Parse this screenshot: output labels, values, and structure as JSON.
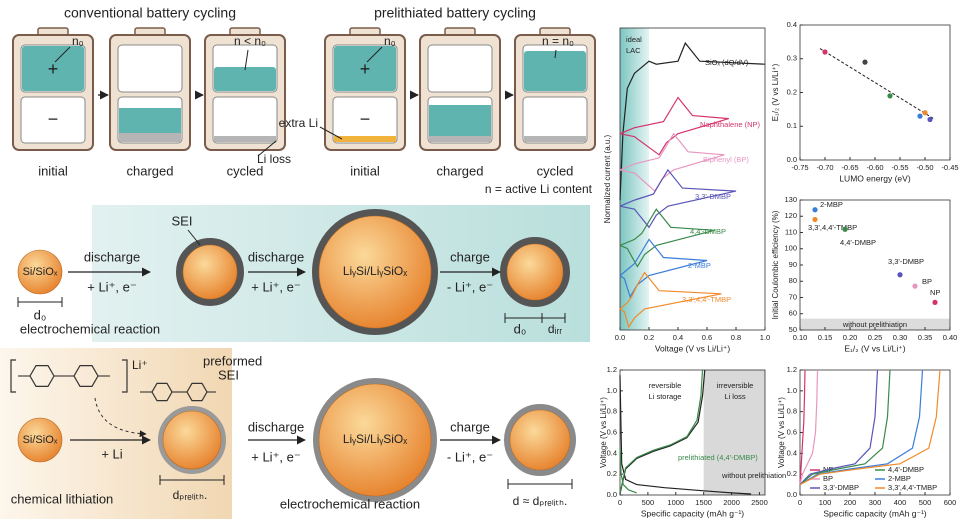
{
  "schematic": {
    "conventional_title": "conventional battery cycling",
    "prelithiated_title": "prelithiated battery cycling",
    "stage_labels": [
      "initial",
      "charged",
      "cycled",
      "initial",
      "charged",
      "cycled"
    ],
    "callouts": [
      "n₀",
      "n < n₀",
      "Li loss",
      "n₀",
      "n = n₀",
      "extra Li"
    ],
    "electrodes": [
      "+",
      "−",
      "+",
      "−"
    ],
    "legend_note": "n = active Li content"
  },
  "electrochemical_row": {
    "particle": "Si/SiOₓ",
    "sei": "SEI",
    "steps": [
      "discharge",
      "+ Li⁺, e⁻",
      "discharge",
      "+ Li⁺, e⁻",
      "charge",
      "- Li⁺, e⁻"
    ],
    "lithiated": "LiᵧSi/LiᵧSiOₓ",
    "caption": "electrochemical reaction",
    "sizes": [
      "d₀",
      "d₀",
      "dᵢᵣᵣ"
    ]
  },
  "chemical_row": {
    "reagent_ion": "Li⁺",
    "particle": "Si/SiOₓ",
    "reagent_step": "+ Li",
    "sei_lines": [
      "preformed",
      "SEI"
    ],
    "caption_left": "chemical lithiation",
    "size_left": "dₚᵣₑₗᵢₜₕ.",
    "steps": [
      "discharge",
      "+ Li⁺, e⁻",
      "charge",
      "- Li⁺, e⁻"
    ],
    "lithiated": "LiᵧSi/LiᵧSiOₓ",
    "caption_right": "electrochemical reaction",
    "size_right": "d ≈ dₚᵣₑₗᵢₜₕ."
  },
  "chart_data": [
    {
      "type": "line",
      "xlabel": "Voltage (V vs Li/Li⁺)",
      "ylabel": "Normalized current (a.u.)",
      "xlim": [
        0,
        1.0
      ],
      "xticks": [
        {
          "value": 0,
          "label": "0.0"
        },
        0.2,
        0.4,
        0.6,
        0.8,
        {
          "value": 1,
          "label": "1.0"
        }
      ],
      "ylim": [
        0,
        10
      ],
      "shade_x": [
        0,
        0.2
      ],
      "annotations": [
        "ideal",
        "LAC"
      ],
      "series": [
        {
          "name": "SiOₓ (dQ/dV)",
          "color": "#222222",
          "x": [
            0,
            0.02,
            0.05,
            0.1,
            0.2,
            0.25,
            0.4,
            0.45,
            0.55,
            1.0
          ],
          "values": [
            4.3,
            6.5,
            8.0,
            8.5,
            8.9,
            8.8,
            8.9,
            9.5,
            8.9,
            8.8
          ]
        },
        {
          "name": "Naphthalene (NP)",
          "color": "#d6336c",
          "x": [
            0,
            0.1,
            0.3,
            0.35,
            0.4,
            0.5,
            0.75,
            0.4,
            0.32,
            0.27,
            0.1,
            0
          ],
          "values": [
            6.5,
            6.7,
            6.9,
            7.3,
            7.7,
            7.1,
            7.0,
            6.5,
            6.2,
            5.8,
            6.4,
            6.5
          ]
        },
        {
          "name": "Biphenyl (BP)",
          "color": "#e896c0",
          "x": [
            0,
            0.1,
            0.27,
            0.32,
            0.37,
            0.47,
            0.72,
            0.37,
            0.29,
            0.24,
            0.1,
            0
          ],
          "values": [
            5.3,
            5.5,
            5.7,
            6.1,
            6.5,
            5.9,
            5.8,
            5.3,
            5.0,
            4.6,
            5.2,
            5.3
          ]
        },
        {
          "name": "3,3'-DMBP",
          "color": "#5a55b8",
          "x": [
            0,
            0.1,
            0.23,
            0.28,
            0.33,
            0.43,
            0.8,
            0.33,
            0.25,
            0.2,
            0.1,
            0
          ],
          "values": [
            4.1,
            4.3,
            4.5,
            4.9,
            5.3,
            4.7,
            4.6,
            4.1,
            3.8,
            3.4,
            4.0,
            4.1
          ]
        },
        {
          "name": "4,4'-DMBP",
          "color": "#3a8a4a",
          "x": [
            0,
            0.1,
            0.15,
            0.2,
            0.25,
            0.35,
            0.65,
            0.25,
            0.17,
            0.12,
            0.05,
            0
          ],
          "values": [
            2.8,
            3.0,
            3.2,
            3.6,
            4.0,
            3.4,
            3.3,
            2.8,
            2.5,
            2.1,
            2.7,
            2.8
          ]
        },
        {
          "name": "2-MBP",
          "color": "#3b7dd8",
          "x": [
            0,
            0.05,
            0.1,
            0.15,
            0.2,
            0.3,
            0.6,
            0.2,
            0.12,
            0.07,
            0.03,
            0
          ],
          "values": [
            1.8,
            2.0,
            2.2,
            2.6,
            3.0,
            2.4,
            2.3,
            1.8,
            1.5,
            1.1,
            1.7,
            1.8
          ]
        },
        {
          "name": "3,3',4,4'-TMBP",
          "color": "#f08a2c",
          "x": [
            0,
            0.05,
            0.08,
            0.12,
            0.17,
            0.27,
            0.7,
            0.17,
            0.1,
            0.06,
            0.03,
            0
          ],
          "values": [
            0.7,
            0.9,
            1.1,
            1.5,
            1.9,
            1.3,
            1.2,
            0.7,
            0.4,
            0.1,
            0.6,
            0.7
          ]
        }
      ]
    },
    {
      "type": "scatter",
      "xlabel": "LUMO energy (eV)",
      "ylabel": "E₁/₂ (V vs Li/Li⁺)",
      "xlim": [
        -0.75,
        -0.45
      ],
      "xticks": [
        -0.75,
        {
          "value": -0.7,
          "label": "-0.70"
        },
        -0.65,
        {
          "value": -0.6,
          "label": "-0.60"
        },
        -0.55,
        {
          "value": -0.5,
          "label": "-0.50"
        },
        -0.45
      ],
      "ylim": [
        0,
        0.4
      ],
      "yticks": [
        {
          "value": 0,
          "label": "0.0"
        },
        0.1,
        0.2,
        0.3,
        0.4
      ],
      "x": [
        -0.7,
        -0.62,
        -0.57,
        -0.51,
        -0.5,
        -0.49
      ],
      "values": [
        0.32,
        0.29,
        0.19,
        0.13,
        0.14,
        0.12
      ],
      "colors": [
        "#d6336c",
        "#444444",
        "#3a8a4a",
        "#3b7dd8",
        "#f08a2c",
        "#5a55b8"
      ],
      "fit_line": {
        "x": [
          -0.71,
          -0.48
        ],
        "values": [
          0.33,
          0.12
        ]
      }
    },
    {
      "type": "scatter",
      "xlabel": "E₁/₂ (V vs Li/Li⁺)",
      "ylabel": "Initial Coulombic efficiency (%)",
      "xlim": [
        0.1,
        0.4
      ],
      "xticks": [
        {
          "value": 0.1,
          "label": "0.10"
        },
        0.15,
        {
          "value": 0.2,
          "label": "0.20"
        },
        0.25,
        {
          "value": 0.3,
          "label": "0.30"
        },
        0.35,
        {
          "value": 0.4,
          "label": "0.40"
        }
      ],
      "ylim": [
        50,
        130
      ],
      "yticks": [
        50,
        60,
        70,
        80,
        90,
        100,
        110,
        120,
        130
      ],
      "x": [
        0.13,
        0.13,
        0.19,
        0.3,
        0.33,
        0.37
      ],
      "values": [
        124,
        118,
        112,
        84,
        77,
        67
      ],
      "colors": [
        "#3b7dd8",
        "#f08a2c",
        "#3a8a4a",
        "#5a55b8",
        "#e896c0",
        "#d6336c"
      ],
      "labels": [
        "2-MBP",
        "3,3',4,4'-TMBP",
        "4,4'-DMBP",
        "3,3'-DMBP",
        "BP",
        "NP"
      ],
      "shade_y": [
        50,
        57
      ],
      "annotations": [
        "without prelithiation"
      ]
    },
    {
      "type": "line",
      "xlabel": "Specific capacity (mAh g⁻¹)",
      "ylabel": "Voltage (V vs Li/Li⁺)",
      "xlim": [
        0,
        2600
      ],
      "xticks": [
        0,
        500,
        1000,
        1500,
        2000,
        2500
      ],
      "ylim": [
        0,
        1.2
      ],
      "yticks": [
        {
          "value": 0,
          "label": "0.0"
        },
        0.2,
        0.4,
        0.6,
        0.8,
        {
          "value": 1,
          "label": "1.0"
        },
        1.2
      ],
      "shade_x": [
        1500,
        2600
      ],
      "annotations": [
        "reversible",
        "Li storage",
        "irreversible",
        "Li loss"
      ],
      "series": [
        {
          "name": "without prelithiation",
          "color": "#222222",
          "x": [
            0,
            30,
            100,
            300,
            800,
            1500,
            2000,
            2350,
            null,
            0,
            100,
            300,
            600,
            900,
            1200,
            1400,
            1480,
            1520
          ],
          "values": [
            1.15,
            0.3,
            0.15,
            0.1,
            0.07,
            0.04,
            0.02,
            0.01,
            null,
            0.01,
            0.25,
            0.35,
            0.42,
            0.47,
            0.55,
            0.7,
            0.95,
            1.2
          ]
        },
        {
          "name": "prelithiated (4,4'-DMBP)",
          "color": "#3a8a4a",
          "x": [
            0,
            20,
            60,
            150,
            300,
            null,
            0,
            100,
            300,
            600,
            900,
            1200,
            1380,
            1450,
            1480
          ],
          "values": [
            0.45,
            0.2,
            0.1,
            0.05,
            0.02,
            null,
            0.02,
            0.26,
            0.36,
            0.43,
            0.48,
            0.56,
            0.72,
            0.95,
            1.2
          ]
        }
      ]
    },
    {
      "type": "line",
      "xlabel": "Specific capacity (mAh g⁻¹)",
      "ylabel": "Voltage (V vs Li/Li⁺)",
      "xlim": [
        0,
        600
      ],
      "xticks": [
        0,
        100,
        200,
        300,
        400,
        500,
        600
      ],
      "ylim": [
        0,
        1.2
      ],
      "yticks": [
        {
          "value": 0,
          "label": "0.0"
        },
        0.2,
        0.4,
        0.6,
        0.8,
        {
          "value": 1,
          "label": "1.0"
        },
        1.2
      ],
      "legend": "lower right",
      "series": [
        {
          "name": "NP",
          "color": "#d6336c",
          "x": [
            0,
            5,
            10,
            15,
            18,
            20
          ],
          "values": [
            0.1,
            0.3,
            0.5,
            0.7,
            0.95,
            1.2
          ]
        },
        {
          "name": "BP",
          "color": "#e896c0",
          "x": [
            0,
            10,
            30,
            50,
            62,
            67,
            70
          ],
          "values": [
            0.1,
            0.2,
            0.3,
            0.4,
            0.6,
            0.9,
            1.2
          ]
        },
        {
          "name": "3,3'-DMBP",
          "color": "#5a55b8",
          "x": [
            0,
            40,
            120,
            220,
            280,
            300,
            310
          ],
          "values": [
            0.1,
            0.2,
            0.25,
            0.3,
            0.45,
            0.75,
            1.2
          ]
        },
        {
          "name": "4,4'-DMBP",
          "color": "#3a8a4a",
          "x": [
            0,
            50,
            150,
            260,
            330,
            350,
            360
          ],
          "values": [
            0.1,
            0.2,
            0.25,
            0.3,
            0.45,
            0.75,
            1.2
          ]
        },
        {
          "name": "2-MBP",
          "color": "#3b7dd8",
          "x": [
            0,
            70,
            200,
            350,
            450,
            478,
            490
          ],
          "values": [
            0.1,
            0.2,
            0.25,
            0.3,
            0.45,
            0.75,
            1.2
          ]
        },
        {
          "name": "3,3',4,4'-TMBP",
          "color": "#f08a2c",
          "x": [
            0,
            80,
            230,
            400,
            515,
            545,
            560
          ],
          "values": [
            0.1,
            0.2,
            0.25,
            0.3,
            0.45,
            0.75,
            1.2
          ]
        }
      ]
    }
  ]
}
